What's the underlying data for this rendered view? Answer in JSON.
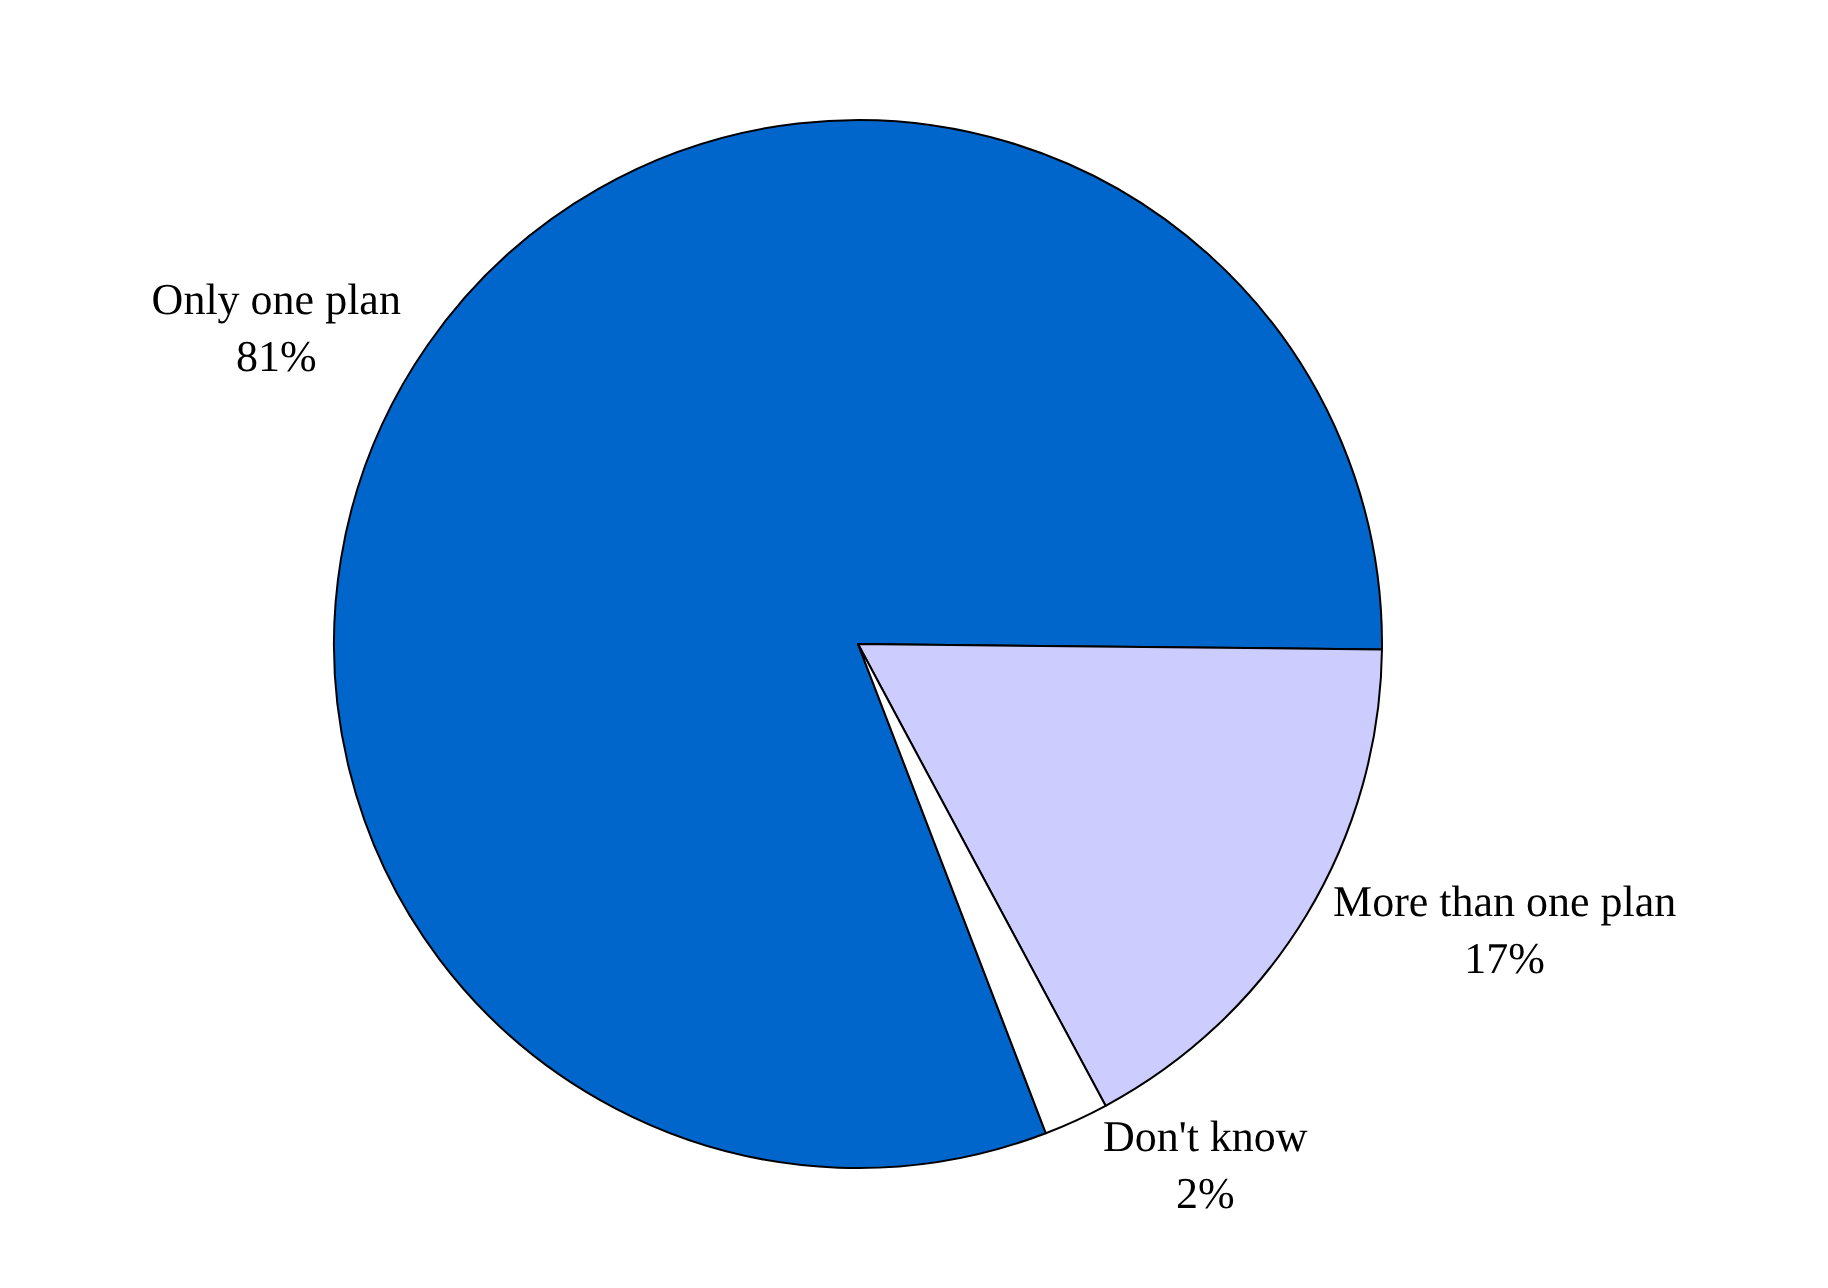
{
  "chart_data": {
    "type": "pie",
    "categories": [
      "Only one plan",
      "More than one plan",
      "Don't know"
    ],
    "values": [
      81,
      17,
      2
    ],
    "value_labels": [
      "81%",
      "17%",
      "2%"
    ],
    "colors": [
      "#0066cc",
      "#ccccff",
      "#ffffff"
    ],
    "legend": false
  }
}
